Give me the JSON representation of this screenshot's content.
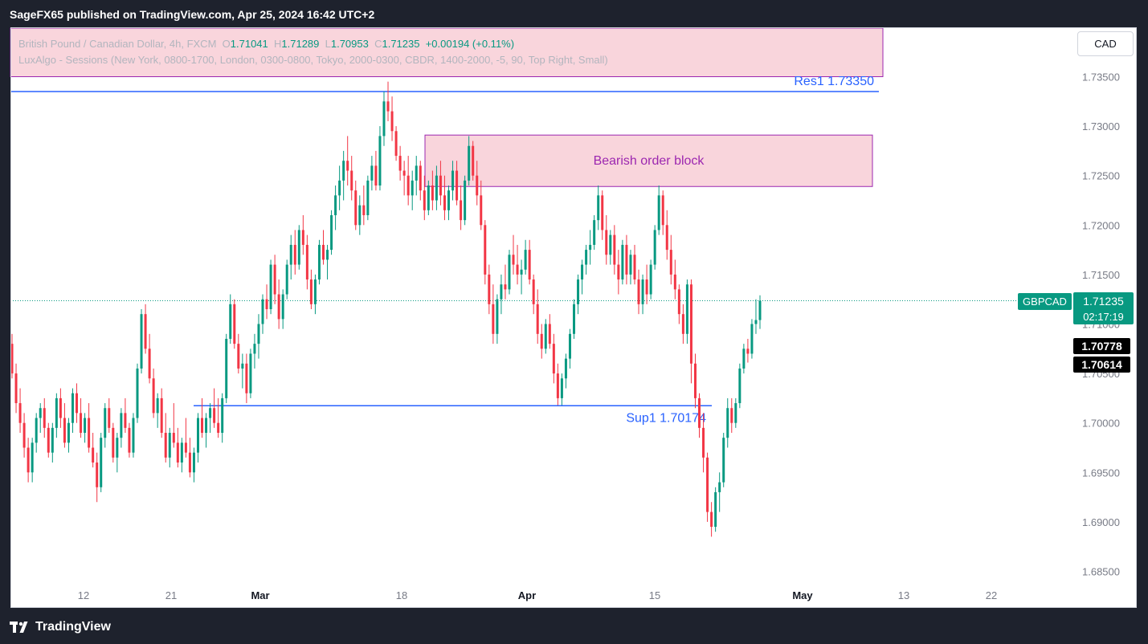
{
  "header": {
    "publisher": "SageFX65 published on TradingView.com, Apr 25, 2024 16:42 UTC+2"
  },
  "footer": {
    "logo": "TradingView"
  },
  "currency_button": "CAD",
  "legend": {
    "symbol": "British Pound / Canadian Dollar, 4h, FXCM",
    "o_label": "O",
    "o_value": "1.71041",
    "h_label": "H",
    "h_value": "1.71289",
    "l_label": "L",
    "l_value": "1.70953",
    "c_label": "C",
    "c_value": "1.71235",
    "change": "+0.00194 (+0.11%)",
    "indicator": "LuxAlgo - Sessions (New York, 0800-1700, London, 0300-0800, Tokyo, 2000-0300, CBDR, 1400-2000, -5, 90, Top Right, Small)"
  },
  "chart_data": {
    "type": "candlestick",
    "symbol": "GBPCAD",
    "interval": "4h",
    "y_ticks": [
      "1.73500",
      "1.73000",
      "1.72500",
      "1.72000",
      "1.71500",
      "1.71000",
      "1.70500",
      "1.70000",
      "1.69500",
      "1.69000",
      "1.68500"
    ],
    "y_tick_values": [
      1.735,
      1.73,
      1.725,
      1.72,
      1.715,
      1.71,
      1.705,
      1.7,
      1.695,
      1.69,
      1.685
    ],
    "x_ticks": [
      "12",
      "21",
      "Mar",
      "18",
      "Apr",
      "15",
      "May",
      "13",
      "22"
    ],
    "ylim": [
      1.6825,
      1.7375
    ],
    "last_price": {
      "symbol_label": "GBPCAD",
      "value": 1.71235,
      "value_label": "1.71235",
      "countdown": "02:17:19"
    },
    "price_markers": [
      {
        "value": 1.70778,
        "label": "1.70778"
      },
      {
        "value": 1.70614,
        "label": "1.70614"
      }
    ],
    "levels": [
      {
        "label": "Res1 1.73350",
        "value": 1.7335
      },
      {
        "label": "Sup1 1.70174",
        "value": 1.70174
      }
    ],
    "zones": [
      {
        "label": "Bearish order block",
        "from": 1.7291,
        "to": 1.7239
      },
      {
        "label": "",
        "from": 1.7375,
        "to": 1.7352
      }
    ],
    "colors": {
      "up": "#089981",
      "down": "#f23645",
      "level": "#2962ff",
      "zone_fill": "#f9d5dc",
      "zone_border": "#9c27b0"
    },
    "ohlc": [
      [
        1.708,
        1.709,
        1.7045,
        1.705
      ],
      [
        1.705,
        1.706,
        1.701,
        1.702
      ],
      [
        1.702,
        1.7035,
        1.699,
        1.7
      ],
      [
        1.7,
        1.701,
        1.6965,
        1.6975
      ],
      [
        1.6975,
        1.6985,
        1.694,
        1.695
      ],
      [
        1.695,
        1.6985,
        1.694,
        1.698
      ],
      [
        1.698,
        1.701,
        1.697,
        1.7005
      ],
      [
        1.7005,
        1.702,
        1.699,
        1.7015
      ],
      [
        1.7015,
        1.7025,
        1.6985,
        1.6995
      ],
      [
        1.6995,
        1.7,
        1.6965,
        1.697
      ],
      [
        1.697,
        1.7,
        1.696,
        1.6995
      ],
      [
        1.6995,
        1.703,
        1.6985,
        1.7025
      ],
      [
        1.7025,
        1.7035,
        1.6995,
        1.7005
      ],
      [
        1.7005,
        1.702,
        1.6975,
        1.698
      ],
      [
        1.698,
        1.7005,
        1.697,
        1.7
      ],
      [
        1.7,
        1.7035,
        1.699,
        1.703
      ],
      [
        1.703,
        1.704,
        1.7,
        1.701
      ],
      [
        1.701,
        1.7025,
        1.6985,
        1.699
      ],
      [
        1.699,
        1.701,
        1.698,
        1.7005
      ],
      [
        1.7005,
        1.702,
        1.697,
        1.6975
      ],
      [
        1.6975,
        1.699,
        1.6955,
        1.696
      ],
      [
        1.696,
        1.697,
        1.692,
        1.6935
      ],
      [
        1.6935,
        1.699,
        1.693,
        1.6985
      ],
      [
        1.6985,
        1.702,
        1.6975,
        1.7015
      ],
      [
        1.7015,
        1.7025,
        1.699,
        1.6995
      ],
      [
        1.6995,
        1.7,
        1.696,
        1.6965
      ],
      [
        1.6965,
        1.699,
        1.695,
        1.6985
      ],
      [
        1.6985,
        1.7015,
        1.6975,
        1.701
      ],
      [
        1.701,
        1.7025,
        1.699,
        1.6995
      ],
      [
        1.6995,
        1.7,
        1.6965,
        1.697
      ],
      [
        1.697,
        1.701,
        1.6965,
        1.7005
      ],
      [
        1.7005,
        1.706,
        1.7,
        1.7055
      ],
      [
        1.7055,
        1.7115,
        1.705,
        1.711
      ],
      [
        1.711,
        1.712,
        1.707,
        1.7075
      ],
      [
        1.7075,
        1.709,
        1.704,
        1.7045
      ],
      [
        1.7045,
        1.7055,
        1.7005,
        1.701
      ],
      [
        1.701,
        1.703,
        1.6995,
        1.7025
      ],
      [
        1.7025,
        1.7035,
        1.6985,
        1.699
      ],
      [
        1.699,
        1.701,
        1.696,
        1.6965
      ],
      [
        1.6965,
        1.6995,
        1.6955,
        1.699
      ],
      [
        1.699,
        1.702,
        1.6975,
        1.698
      ],
      [
        1.698,
        1.6995,
        1.6955,
        1.696
      ],
      [
        1.696,
        1.6985,
        1.695,
        1.698
      ],
      [
        1.698,
        1.7005,
        1.6965,
        1.697
      ],
      [
        1.697,
        1.6985,
        1.6945,
        1.695
      ],
      [
        1.695,
        1.6975,
        1.694,
        1.697
      ],
      [
        1.697,
        1.701,
        1.696,
        1.7005
      ],
      [
        1.7005,
        1.7025,
        1.6985,
        1.699
      ],
      [
        1.699,
        1.701,
        1.6975,
        1.7005
      ],
      [
        1.7005,
        1.702,
        1.699,
        1.7015
      ],
      [
        1.7015,
        1.7035,
        1.6995,
        1.7
      ],
      [
        1.7,
        1.7025,
        1.6985,
        1.699
      ],
      [
        1.699,
        1.703,
        1.698,
        1.7025
      ],
      [
        1.7025,
        1.709,
        1.702,
        1.7085
      ],
      [
        1.7085,
        1.713,
        1.708,
        1.712
      ],
      [
        1.712,
        1.7125,
        1.7075,
        1.708
      ],
      [
        1.708,
        1.709,
        1.705,
        1.7055
      ],
      [
        1.7055,
        1.707,
        1.7035,
        1.706
      ],
      [
        1.706,
        1.707,
        1.702,
        1.703
      ],
      [
        1.703,
        1.7075,
        1.7025,
        1.707
      ],
      [
        1.707,
        1.709,
        1.7055,
        1.708
      ],
      [
        1.708,
        1.711,
        1.7065,
        1.71
      ],
      [
        1.71,
        1.713,
        1.709,
        1.7125
      ],
      [
        1.7125,
        1.714,
        1.7105,
        1.7115
      ],
      [
        1.7115,
        1.7165,
        1.711,
        1.716
      ],
      [
        1.716,
        1.717,
        1.712,
        1.713
      ],
      [
        1.713,
        1.7145,
        1.7095,
        1.7105
      ],
      [
        1.7105,
        1.7135,
        1.7095,
        1.713
      ],
      [
        1.713,
        1.7165,
        1.7125,
        1.716
      ],
      [
        1.716,
        1.719,
        1.7145,
        1.718
      ],
      [
        1.718,
        1.7195,
        1.715,
        1.716
      ],
      [
        1.716,
        1.72,
        1.7155,
        1.7195
      ],
      [
        1.7195,
        1.721,
        1.717,
        1.718
      ],
      [
        1.718,
        1.719,
        1.7135,
        1.7145
      ],
      [
        1.7145,
        1.7155,
        1.7115,
        1.712
      ],
      [
        1.712,
        1.715,
        1.711,
        1.7145
      ],
      [
        1.7145,
        1.7185,
        1.714,
        1.718
      ],
      [
        1.718,
        1.7195,
        1.716,
        1.7165
      ],
      [
        1.7165,
        1.718,
        1.7145,
        1.7175
      ],
      [
        1.7175,
        1.7215,
        1.717,
        1.721
      ],
      [
        1.721,
        1.724,
        1.7195,
        1.723
      ],
      [
        1.723,
        1.726,
        1.7215,
        1.7245
      ],
      [
        1.7245,
        1.7275,
        1.7225,
        1.7265
      ],
      [
        1.7265,
        1.729,
        1.724,
        1.7255
      ],
      [
        1.7255,
        1.727,
        1.7225,
        1.7235
      ],
      [
        1.7235,
        1.7245,
        1.7195,
        1.72
      ],
      [
        1.72,
        1.723,
        1.719,
        1.722
      ],
      [
        1.722,
        1.724,
        1.72,
        1.721
      ],
      [
        1.721,
        1.725,
        1.7205,
        1.7245
      ],
      [
        1.7245,
        1.727,
        1.7235,
        1.726
      ],
      [
        1.726,
        1.7275,
        1.7235,
        1.724
      ],
      [
        1.724,
        1.73,
        1.7235,
        1.729
      ],
      [
        1.729,
        1.7335,
        1.728,
        1.7325
      ],
      [
        1.7325,
        1.7345,
        1.7305,
        1.7315
      ],
      [
        1.7315,
        1.733,
        1.7285,
        1.7295
      ],
      [
        1.7295,
        1.73,
        1.7265,
        1.727
      ],
      [
        1.727,
        1.728,
        1.7245,
        1.7255
      ],
      [
        1.7255,
        1.7265,
        1.723,
        1.725
      ],
      [
        1.725,
        1.727,
        1.722,
        1.723
      ],
      [
        1.723,
        1.7255,
        1.7215,
        1.7245
      ],
      [
        1.7245,
        1.727,
        1.723,
        1.726
      ],
      [
        1.726,
        1.7265,
        1.7225,
        1.7235
      ],
      [
        1.7235,
        1.725,
        1.7205,
        1.7215
      ],
      [
        1.7215,
        1.7245,
        1.721,
        1.724
      ],
      [
        1.724,
        1.7255,
        1.7215,
        1.7225
      ],
      [
        1.7225,
        1.726,
        1.7215,
        1.725
      ],
      [
        1.725,
        1.7265,
        1.722,
        1.723
      ],
      [
        1.723,
        1.725,
        1.7205,
        1.7215
      ],
      [
        1.7215,
        1.724,
        1.7205,
        1.7235
      ],
      [
        1.7235,
        1.7265,
        1.7225,
        1.7255
      ],
      [
        1.7255,
        1.7265,
        1.722,
        1.7225
      ],
      [
        1.7225,
        1.724,
        1.7195,
        1.7205
      ],
      [
        1.7205,
        1.725,
        1.72,
        1.7245
      ],
      [
        1.7245,
        1.729,
        1.724,
        1.728
      ],
      [
        1.728,
        1.7285,
        1.7245,
        1.725
      ],
      [
        1.725,
        1.7265,
        1.722,
        1.723
      ],
      [
        1.723,
        1.7245,
        1.7195,
        1.72
      ],
      [
        1.72,
        1.7205,
        1.714,
        1.715
      ],
      [
        1.715,
        1.716,
        1.711,
        1.712
      ],
      [
        1.712,
        1.714,
        1.708,
        1.709
      ],
      [
        1.709,
        1.713,
        1.708,
        1.7125
      ],
      [
        1.7125,
        1.715,
        1.711,
        1.714
      ],
      [
        1.714,
        1.716,
        1.7125,
        1.7135
      ],
      [
        1.7135,
        1.7175,
        1.713,
        1.717
      ],
      [
        1.717,
        1.719,
        1.715,
        1.716
      ],
      [
        1.716,
        1.718,
        1.714,
        1.715
      ],
      [
        1.715,
        1.7165,
        1.713,
        1.7155
      ],
      [
        1.7155,
        1.7185,
        1.715,
        1.7175
      ],
      [
        1.7175,
        1.7185,
        1.714,
        1.7145
      ],
      [
        1.7145,
        1.715,
        1.711,
        1.712
      ],
      [
        1.712,
        1.7135,
        1.708,
        1.709
      ],
      [
        1.709,
        1.71,
        1.7065,
        1.7075
      ],
      [
        1.7075,
        1.7105,
        1.707,
        1.71
      ],
      [
        1.71,
        1.711,
        1.7075,
        1.708
      ],
      [
        1.708,
        1.709,
        1.704,
        1.705
      ],
      [
        1.705,
        1.706,
        1.7018,
        1.7025
      ],
      [
        1.7025,
        1.705,
        1.7018,
        1.7045
      ],
      [
        1.7045,
        1.707,
        1.7035,
        1.7065
      ],
      [
        1.7065,
        1.7095,
        1.7055,
        1.709
      ],
      [
        1.709,
        1.7125,
        1.7085,
        1.712
      ],
      [
        1.712,
        1.715,
        1.711,
        1.7145
      ],
      [
        1.7145,
        1.7165,
        1.713,
        1.716
      ],
      [
        1.716,
        1.718,
        1.715,
        1.7175
      ],
      [
        1.7175,
        1.7195,
        1.716,
        1.718
      ],
      [
        1.718,
        1.721,
        1.7175,
        1.7205
      ],
      [
        1.7205,
        1.724,
        1.7195,
        1.723
      ],
      [
        1.723,
        1.7235,
        1.7185,
        1.7195
      ],
      [
        1.7195,
        1.721,
        1.716,
        1.717
      ],
      [
        1.717,
        1.7195,
        1.716,
        1.719
      ],
      [
        1.719,
        1.72,
        1.715,
        1.716
      ],
      [
        1.716,
        1.7175,
        1.713,
        1.7145
      ],
      [
        1.7145,
        1.7185,
        1.714,
        1.718
      ],
      [
        1.718,
        1.719,
        1.714,
        1.715
      ],
      [
        1.715,
        1.7175,
        1.714,
        1.717
      ],
      [
        1.717,
        1.718,
        1.714,
        1.7145
      ],
      [
        1.7145,
        1.7155,
        1.711,
        1.712
      ],
      [
        1.712,
        1.715,
        1.711,
        1.7145
      ],
      [
        1.7145,
        1.716,
        1.712,
        1.713
      ],
      [
        1.713,
        1.7165,
        1.7125,
        1.716
      ],
      [
        1.716,
        1.72,
        1.7155,
        1.7195
      ],
      [
        1.7195,
        1.724,
        1.719,
        1.723
      ],
      [
        1.723,
        1.7235,
        1.719,
        1.72
      ],
      [
        1.72,
        1.7215,
        1.7165,
        1.7175
      ],
      [
        1.7175,
        1.719,
        1.714,
        1.715
      ],
      [
        1.715,
        1.7165,
        1.7125,
        1.7135
      ],
      [
        1.7135,
        1.714,
        1.71,
        1.711
      ],
      [
        1.711,
        1.712,
        1.708,
        1.709
      ],
      [
        1.709,
        1.7145,
        1.708,
        1.714
      ],
      [
        1.714,
        1.7145,
        1.704,
        1.706
      ],
      [
        1.706,
        1.707,
        1.7015,
        1.7025
      ],
      [
        1.7025,
        1.703,
        1.6985,
        1.6995
      ],
      [
        1.6995,
        1.701,
        1.695,
        1.6965
      ],
      [
        1.6965,
        1.697,
        1.69,
        1.691
      ],
      [
        1.691,
        1.692,
        1.6885,
        1.6895
      ],
      [
        1.6895,
        1.6935,
        1.689,
        1.693
      ],
      [
        1.693,
        1.695,
        1.691,
        1.694
      ],
      [
        1.694,
        1.699,
        1.6935,
        1.6985
      ],
      [
        1.6985,
        1.7025,
        1.6975,
        1.7015
      ],
      [
        1.7015,
        1.7025,
        1.699,
        1.7
      ],
      [
        1.7,
        1.7025,
        1.6995,
        1.702
      ],
      [
        1.702,
        1.706,
        1.7015,
        1.7055
      ],
      [
        1.7055,
        1.708,
        1.705,
        1.7075
      ],
      [
        1.7075,
        1.7085,
        1.7061,
        1.707
      ],
      [
        1.707,
        1.7105,
        1.7065,
        1.71
      ],
      [
        1.71,
        1.7125,
        1.709,
        1.7104
      ],
      [
        1.7104,
        1.7129,
        1.7095,
        1.71235
      ]
    ]
  }
}
